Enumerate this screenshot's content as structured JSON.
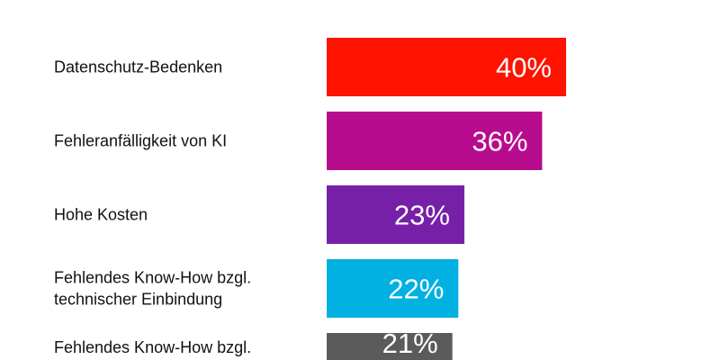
{
  "chart_data": {
    "type": "bar",
    "orientation": "horizontal",
    "title": "",
    "xlabel": "",
    "ylabel": "",
    "xlim": [
      0,
      100
    ],
    "grid": false,
    "categories": [
      [
        "Datenschutz-Bedenken"
      ],
      [
        "Fehleranfälligkeit von KI"
      ],
      [
        "Hohe Kosten"
      ],
      [
        "Fehlendes Know-How bzgl.",
        "technischer Einbindung"
      ],
      [
        "Fehlendes Know-How bzgl."
      ]
    ],
    "values": [
      40,
      36,
      23,
      22,
      21
    ],
    "data_labels": [
      "40%",
      "36%",
      "23%",
      "22%",
      "21%"
    ],
    "colors": [
      "#ff1200",
      "#b80c8f",
      "#7620a8",
      "#00b1e1",
      "#5b5b5b"
    ]
  }
}
